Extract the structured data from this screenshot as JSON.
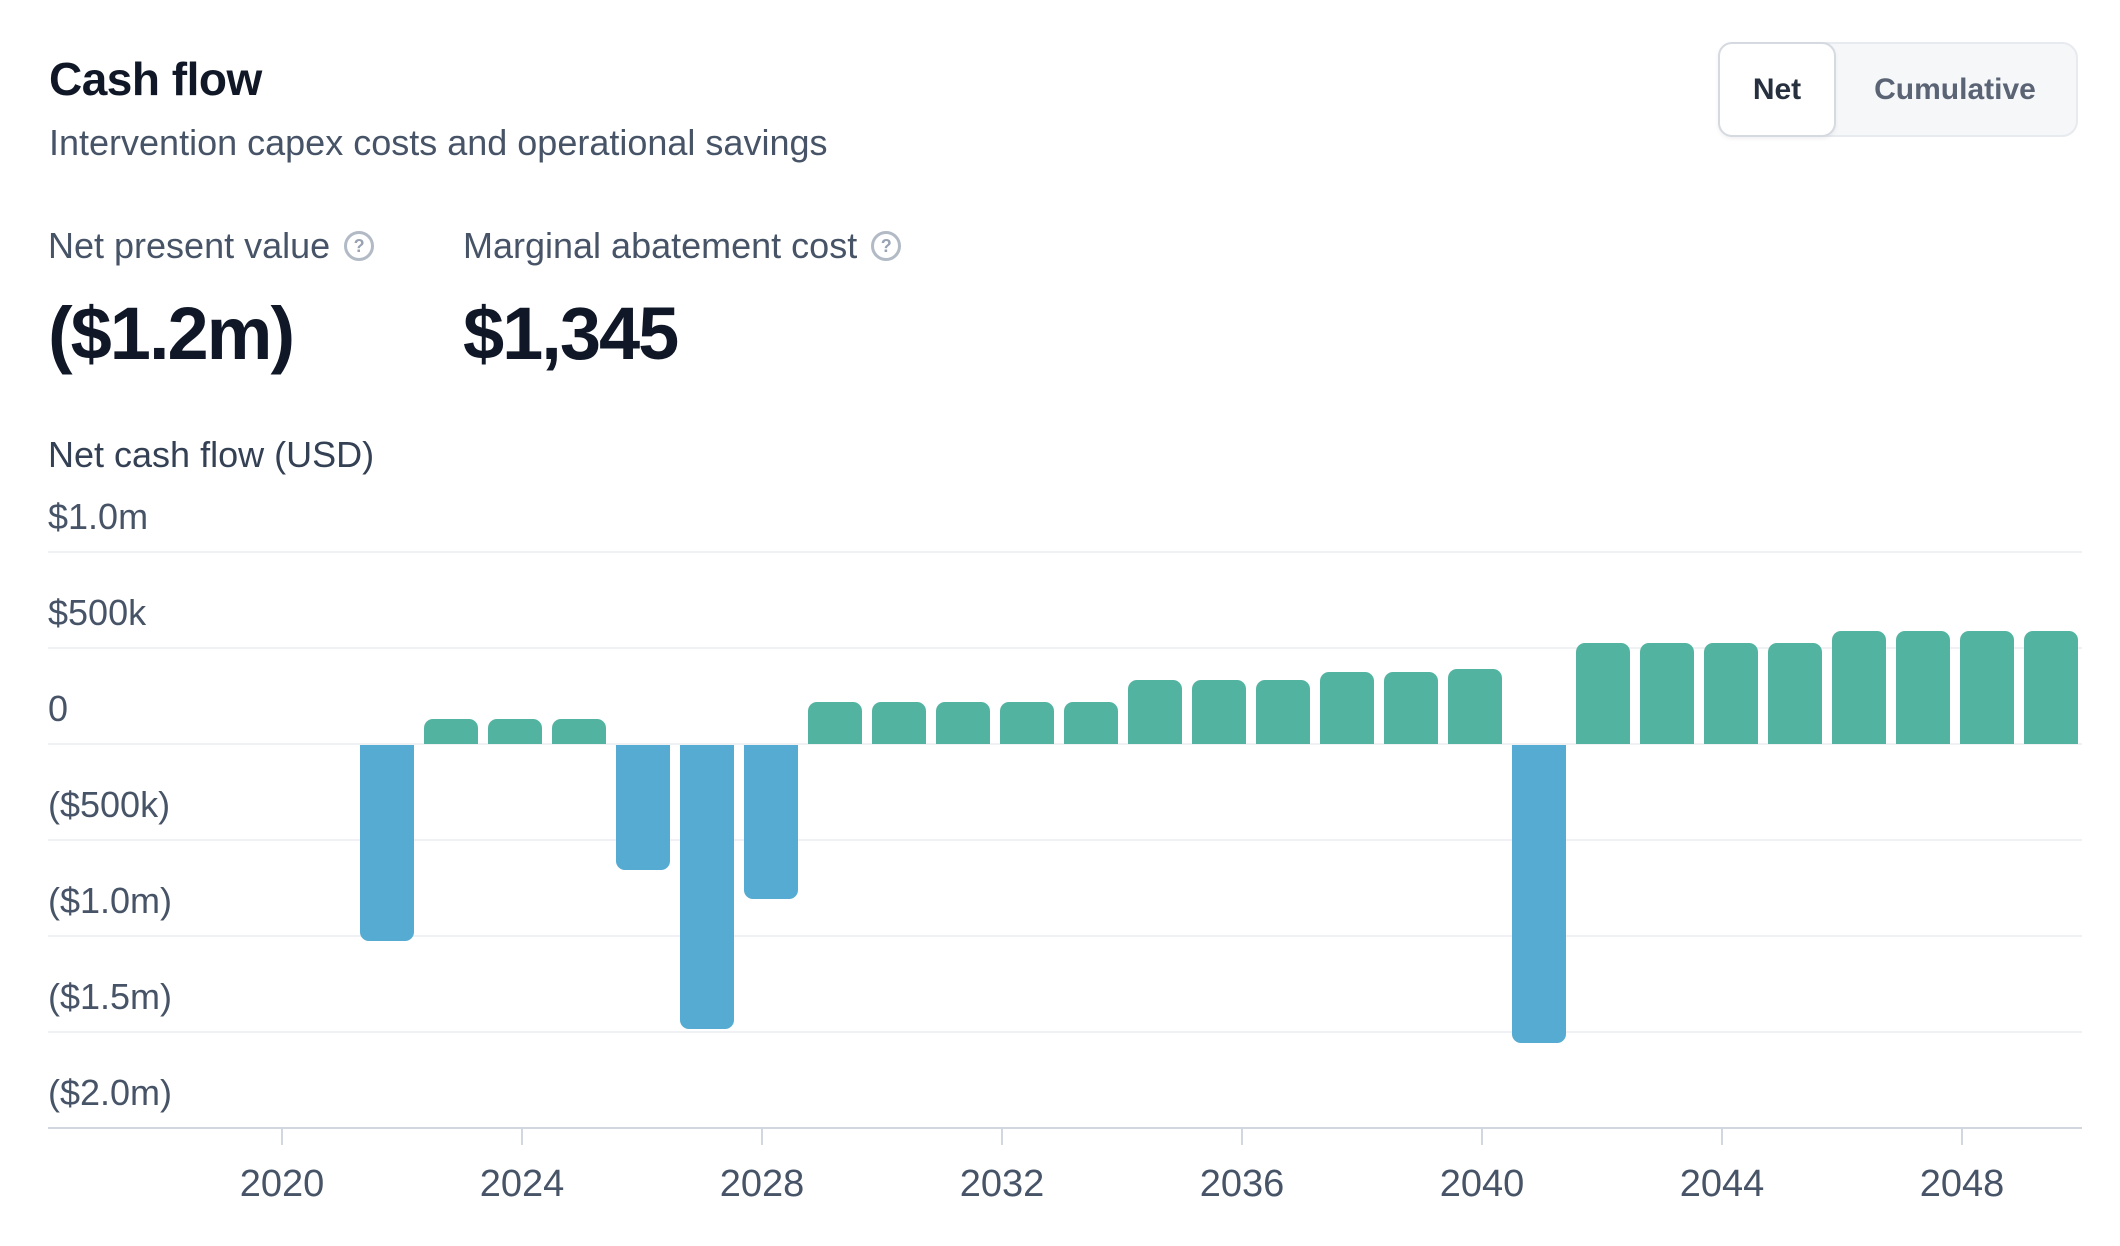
{
  "header": {
    "title": "Cash flow",
    "subtitle": "Intervention capex costs and operational savings"
  },
  "toggle": {
    "selected": "Net",
    "options": [
      "Net",
      "Cumulative"
    ]
  },
  "stats": [
    {
      "label": "Net present value",
      "help_icon": "?",
      "value": "($1.2m)"
    },
    {
      "label": "Marginal abatement cost",
      "help_icon": "?",
      "value": "$1,345"
    }
  ],
  "chart_data": {
    "type": "bar",
    "title": "Net cash flow (USD)",
    "ylabel": "Net cash flow (USD)",
    "xlabel": "",
    "ylim": [
      -2000000,
      1000000
    ],
    "grid": true,
    "legend": "none",
    "positive_color": "#53b3a1",
    "negative_color": "#55abd2",
    "positive_meaning": "operational savings (net inflow)",
    "negative_meaning": "intervention capex costs (net outflow)",
    "y_ticks": [
      {
        "label": "$1.0m",
        "value": 1000000
      },
      {
        "label": "$500k",
        "value": 500000
      },
      {
        "label": "0",
        "value": 0
      },
      {
        "label": "($500k)",
        "value": -500000
      },
      {
        "label": "($1.0m)",
        "value": -1000000
      },
      {
        "label": "($1.5m)",
        "value": -1500000
      },
      {
        "label": "($2.0m)",
        "value": -2000000
      }
    ],
    "x_ticks": [
      2020,
      2024,
      2028,
      2032,
      2036,
      2040,
      2044,
      2048
    ],
    "series": [
      {
        "name": "Net cash flow",
        "points": [
          {
            "year": 2022,
            "value": -1020000
          },
          {
            "year": 2023,
            "value": 130000
          },
          {
            "year": 2024,
            "value": 130000
          },
          {
            "year": 2025,
            "value": 130000
          },
          {
            "year": 2026,
            "value": -650000
          },
          {
            "year": 2027,
            "value": -1480000
          },
          {
            "year": 2028,
            "value": -800000
          },
          {
            "year": 2029,
            "value": 220000
          },
          {
            "year": 2030,
            "value": 220000
          },
          {
            "year": 2031,
            "value": 220000
          },
          {
            "year": 2032,
            "value": 220000
          },
          {
            "year": 2033,
            "value": 220000
          },
          {
            "year": 2034,
            "value": 335000
          },
          {
            "year": 2035,
            "value": 335000
          },
          {
            "year": 2036,
            "value": 335000
          },
          {
            "year": 2037,
            "value": 375000
          },
          {
            "year": 2038,
            "value": 375000
          },
          {
            "year": 2039,
            "value": 390000
          },
          {
            "year": 2040,
            "value": -1550000
          },
          {
            "year": 2041,
            "value": 525000
          },
          {
            "year": 2042,
            "value": 525000
          },
          {
            "year": 2043,
            "value": 525000
          },
          {
            "year": 2044,
            "value": 525000
          },
          {
            "year": 2045,
            "value": 590000
          },
          {
            "year": 2046,
            "value": 590000
          },
          {
            "year": 2047,
            "value": 590000
          },
          {
            "year": 2048,
            "value": 590000
          }
        ]
      }
    ]
  }
}
